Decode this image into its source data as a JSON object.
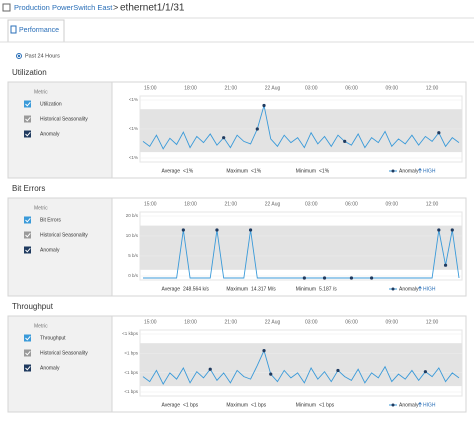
{
  "header": {
    "breadcrumb": "Production PowerSwitch East",
    "separator": ">",
    "title": "ethernet1/1/31"
  },
  "tab": "Performance",
  "time_range": "Past 24 Hours",
  "panels": [
    {
      "title": "Utilization",
      "legend_title": "Metric",
      "legend": [
        "Utilization",
        "Historical Seasonality",
        "Anomaly"
      ],
      "x_labels": [
        "15:00",
        "18:00",
        "21:00",
        "22 Aug",
        "03:00",
        "06:00",
        "09:00",
        "12:00"
      ],
      "y_labels": [
        "<1%",
        "<1%",
        "<1%"
      ],
      "ylim": [
        0,
        100
      ],
      "values": [
        30,
        22,
        40,
        18,
        35,
        25,
        45,
        20,
        38,
        28,
        42,
        24,
        36,
        20,
        40,
        30,
        26,
        50,
        88,
        34,
        22,
        40,
        28,
        36,
        20,
        44,
        26,
        38,
        22,
        40,
        30,
        24,
        42,
        20,
        36,
        28,
        46,
        22,
        34,
        26,
        40,
        24,
        38,
        30,
        44,
        22,
        36,
        28
      ],
      "anomalies": [
        12,
        17,
        18,
        30,
        44
      ],
      "stats": [
        {
          "label": "Average",
          "value": "<1%"
        },
        {
          "label": "Maximum",
          "value": "<1%"
        },
        {
          "label": "Minimum",
          "value": "<1%"
        }
      ],
      "anomaly_label": "Anomaly",
      "severity": "HIGH"
    },
    {
      "title": "Bit Errors",
      "legend_title": "Metric",
      "legend": [
        "Bit Errors",
        "Historical Seasonality",
        "Anomaly"
      ],
      "x_labels": [
        "15:00",
        "18:00",
        "21:00",
        "22 Aug",
        "03:00",
        "06:00",
        "09:00",
        "12:00"
      ],
      "y_labels": [
        "20 b/s",
        "10 b/s",
        "5 b/s",
        "0 b/s"
      ],
      "ylim": [
        0,
        100
      ],
      "values": [
        0,
        0,
        0,
        0,
        0,
        0,
        75,
        0,
        0,
        0,
        0,
        75,
        0,
        0,
        0,
        0,
        75,
        0,
        0,
        0,
        0,
        0,
        0,
        0,
        0,
        0,
        0,
        0,
        0,
        0,
        0,
        0,
        0,
        0,
        0,
        0,
        0,
        0,
        0,
        0,
        0,
        0,
        0,
        0,
        75,
        20,
        75,
        0
      ],
      "anomalies": [
        6,
        11,
        16,
        24,
        27,
        31,
        34,
        44,
        45,
        46
      ],
      "stats": [
        {
          "label": "Average",
          "value": "248.564 k/s"
        },
        {
          "label": "Maximum",
          "value": "14.317 M/s"
        },
        {
          "label": "Minimum",
          "value": "5.187 /s"
        }
      ],
      "anomaly_label": "Anomaly",
      "severity": "HIGH"
    },
    {
      "title": "Throughput",
      "legend_title": "Metric",
      "legend": [
        "Throughput",
        "Historical Seasonality",
        "Anomaly"
      ],
      "x_labels": [
        "15:00",
        "18:00",
        "21:00",
        "22 Aug",
        "03:00",
        "06:00",
        "09:00",
        "12:00"
      ],
      "y_labels": [
        "<1 kbps",
        "<1 bps",
        "<1 bps",
        "<1 bps"
      ],
      "ylim": [
        0,
        100
      ],
      "values": [
        28,
        20,
        38,
        16,
        34,
        24,
        42,
        18,
        36,
        26,
        40,
        22,
        34,
        18,
        38,
        28,
        24,
        46,
        70,
        32,
        20,
        38,
        26,
        34,
        18,
        42,
        24,
        36,
        20,
        38,
        28,
        22,
        40,
        18,
        34,
        26,
        44,
        20,
        32,
        24,
        38,
        22,
        36,
        28,
        42,
        20,
        34,
        26
      ],
      "anomalies": [
        10,
        18,
        19,
        29,
        42
      ],
      "stats": [
        {
          "label": "Average",
          "value": "<1 bps"
        },
        {
          "label": "Maximum",
          "value": "<1 bps"
        },
        {
          "label": "Minimum",
          "value": "<1 bps"
        }
      ],
      "anomaly_label": "Anomaly",
      "severity": "HIGH"
    }
  ]
}
